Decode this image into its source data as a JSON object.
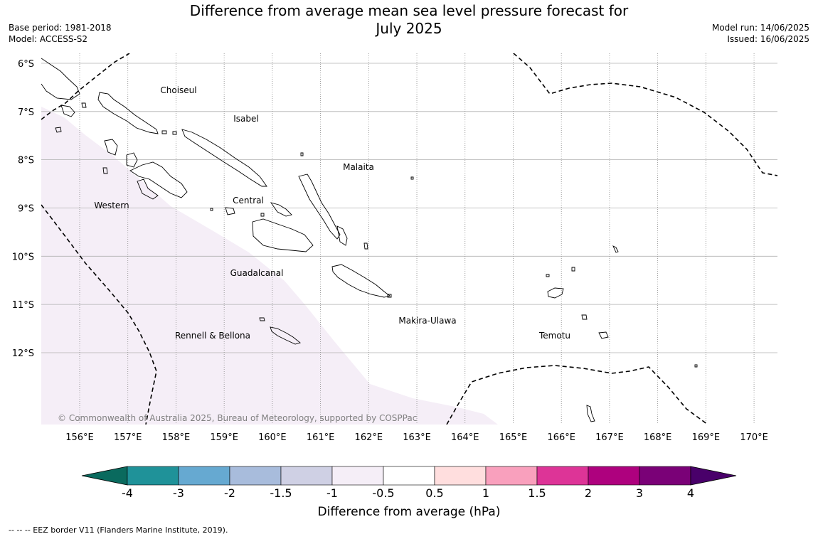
{
  "title_line1": "Difference from average mean sea level pressure forecast for",
  "title_line2": "July 2025",
  "meta_left": {
    "base_period": "Base period: 1981-2018",
    "model": "Model: ACCESS-S2"
  },
  "meta_right": {
    "model_run": "Model run: 14/06/2025",
    "issued": "Issued: 16/06/2025"
  },
  "map": {
    "lon_ticks": [
      "156°E",
      "157°E",
      "158°E",
      "159°E",
      "160°E",
      "161°E",
      "162°E",
      "163°E",
      "164°E",
      "165°E",
      "166°E",
      "167°E",
      "168°E",
      "169°E",
      "170°E"
    ],
    "lat_ticks": [
      "6°S",
      "7°S",
      "8°S",
      "9°S",
      "10°S",
      "11°S",
      "12°S"
    ],
    "provinces": [
      "Choiseul",
      "Isabel",
      "Malaita",
      "Western",
      "Central",
      "Guadalcanal",
      "Makira-Ulawa",
      "Rennell & Bellona",
      "Temotu"
    ],
    "copyright": "© Commonwealth of Australia 2025, Bureau of Meteorology, supported by COSPPac",
    "anomaly_color": "#f5eef7",
    "land_outline_color": "#000000"
  },
  "colorbar": {
    "title": "Difference from average (hPa)",
    "tick_labels": [
      "-4",
      "-3",
      "-2",
      "-1.5",
      "-1",
      "-0.5",
      "0.5",
      "1",
      "1.5",
      "2",
      "3",
      "4"
    ],
    "colors": [
      "#0a6a5e",
      "#1f9299",
      "#66a9d1",
      "#a8bcdc",
      "#cfd0e4",
      "#f5eef7",
      "#ffffff",
      "#ffdede",
      "#f9a0bd",
      "#dd3497",
      "#ae017e",
      "#7a0177",
      "#49006a"
    ]
  },
  "footnote": "--  --  -- EEZ border V11 (Flanders Marine Institute, 2019)."
}
